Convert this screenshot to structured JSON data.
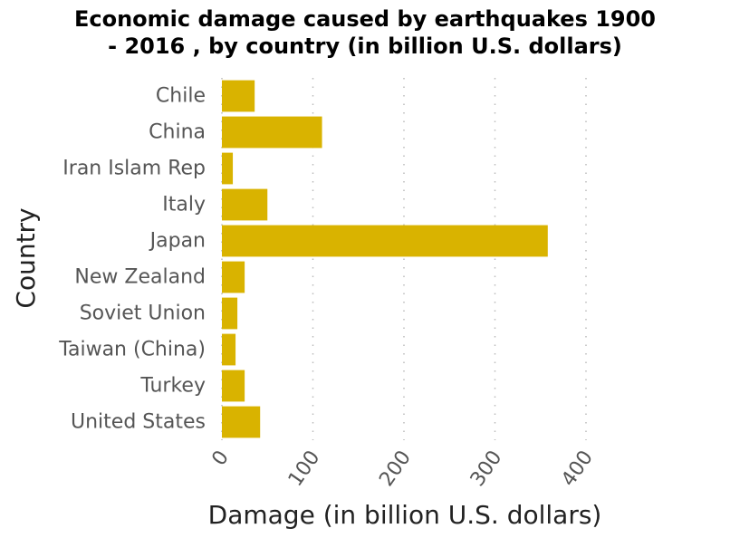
{
  "chart_data": {
    "type": "bar",
    "orientation": "horizontal",
    "title_line1": "Economic damage caused by earthquakes 1900",
    "title_line2": "- 2016 , by country (in billion U.S. dollars)",
    "xlabel": "Damage (in billion U.S. dollars)",
    "ylabel": "Country",
    "categories": [
      "Chile",
      "China",
      "Iran Islam Rep",
      "Italy",
      "Japan",
      "New Zealand",
      "Soviet Union",
      "Taiwan (China)",
      "Turkey",
      "United States"
    ],
    "values": [
      36,
      110,
      12,
      50,
      358,
      25,
      17,
      15,
      25,
      42
    ],
    "xlim": [
      0,
      400
    ],
    "xticks": [
      "0",
      "100",
      "200",
      "300",
      "400"
    ],
    "xtick_values": [
      0,
      100,
      200,
      300,
      400
    ],
    "bar_color": "#d9b300",
    "grid": "vertical dotted"
  }
}
